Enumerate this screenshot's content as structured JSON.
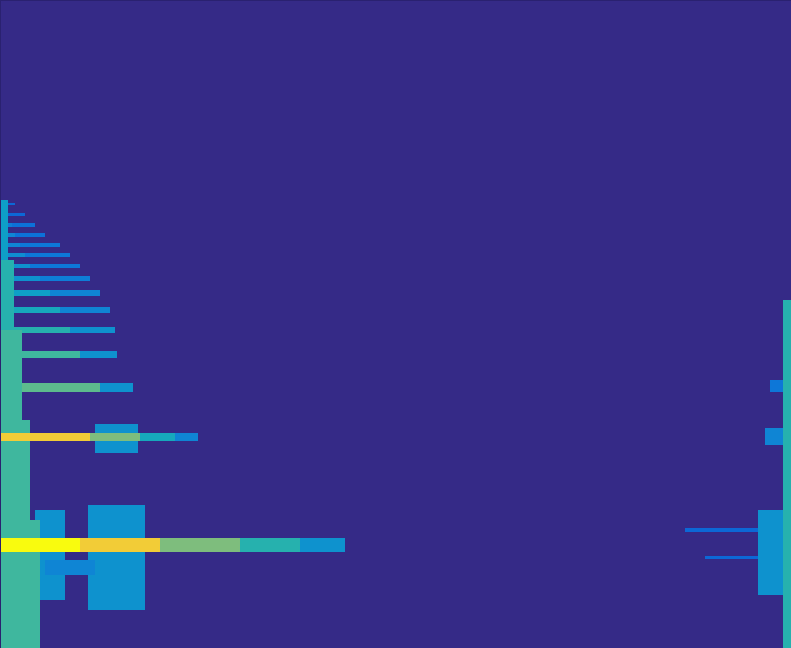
{
  "chart_data": {
    "type": "heatmap",
    "xlim": [
      0,
      791
    ],
    "ylim": [
      648,
      0
    ],
    "tick_labels": false,
    "clim": [
      0,
      1
    ],
    "cells": [
      {
        "x1": 0,
        "x2": 791,
        "y1": 0,
        "y2": 648,
        "value": 0
      },
      {
        "x1": 35,
        "x2": 65,
        "y1": 510,
        "y2": 600,
        "value": 0.3
      },
      {
        "x1": 88,
        "x2": 145,
        "y1": 505,
        "y2": 610,
        "value": 0.3
      },
      {
        "x1": 45,
        "x2": 95,
        "y1": 560,
        "y2": 575,
        "value": 0.25
      },
      {
        "x1": 95,
        "x2": 138,
        "y1": 424,
        "y2": 453,
        "value": 0.3
      },
      {
        "x1": 0,
        "x2": 100,
        "y1": 383,
        "y2": 392,
        "value": 0.55
      },
      {
        "x1": 100,
        "x2": 133,
        "y1": 383,
        "y2": 392,
        "value": 0.3
      },
      {
        "x1": 0,
        "x2": 80,
        "y1": 351,
        "y2": 358,
        "value": 0.5
      },
      {
        "x1": 80,
        "x2": 117,
        "y1": 351,
        "y2": 358,
        "value": 0.3
      },
      {
        "x1": 0,
        "x2": 70,
        "y1": 327,
        "y2": 333,
        "value": 0.45
      },
      {
        "x1": 70,
        "x2": 115,
        "y1": 327,
        "y2": 333,
        "value": 0.3
      },
      {
        "x1": 0,
        "x2": 60,
        "y1": 307,
        "y2": 313,
        "value": 0.4
      },
      {
        "x1": 60,
        "x2": 110,
        "y1": 307,
        "y2": 313,
        "value": 0.25
      },
      {
        "x1": 0,
        "x2": 50,
        "y1": 290,
        "y2": 296,
        "value": 0.35
      },
      {
        "x1": 50,
        "x2": 100,
        "y1": 290,
        "y2": 296,
        "value": 0.25
      },
      {
        "x1": 0,
        "x2": 40,
        "y1": 276,
        "y2": 281,
        "value": 0.3
      },
      {
        "x1": 40,
        "x2": 90,
        "y1": 276,
        "y2": 281,
        "value": 0.22
      },
      {
        "x1": 0,
        "x2": 30,
        "y1": 264,
        "y2": 268,
        "value": 0.3
      },
      {
        "x1": 30,
        "x2": 80,
        "y1": 264,
        "y2": 268,
        "value": 0.2
      },
      {
        "x1": 0,
        "x2": 25,
        "y1": 253,
        "y2": 257,
        "value": 0.28
      },
      {
        "x1": 25,
        "x2": 70,
        "y1": 253,
        "y2": 257,
        "value": 0.2
      },
      {
        "x1": 0,
        "x2": 20,
        "y1": 243,
        "y2": 247,
        "value": 0.25
      },
      {
        "x1": 20,
        "x2": 60,
        "y1": 243,
        "y2": 247,
        "value": 0.2
      },
      {
        "x1": 0,
        "x2": 15,
        "y1": 233,
        "y2": 237,
        "value": 0.25
      },
      {
        "x1": 15,
        "x2": 45,
        "y1": 233,
        "y2": 237,
        "value": 0.18
      },
      {
        "x1": 0,
        "x2": 12,
        "y1": 223,
        "y2": 227,
        "value": 0.22
      },
      {
        "x1": 12,
        "x2": 35,
        "y1": 223,
        "y2": 227,
        "value": 0.18
      },
      {
        "x1": 0,
        "x2": 8,
        "y1": 213,
        "y2": 216,
        "value": 0.22
      },
      {
        "x1": 8,
        "x2": 25,
        "y1": 213,
        "y2": 216,
        "value": 0.15
      },
      {
        "x1": 0,
        "x2": 5,
        "y1": 203,
        "y2": 205,
        "value": 0.2
      },
      {
        "x1": 5,
        "x2": 15,
        "y1": 203,
        "y2": 205,
        "value": 0.15
      },
      {
        "x1": 0,
        "x2": 8,
        "y1": 200,
        "y2": 260,
        "value": 0.35
      },
      {
        "x1": 0,
        "x2": 14,
        "y1": 260,
        "y2": 330,
        "value": 0.45
      },
      {
        "x1": 0,
        "x2": 22,
        "y1": 330,
        "y2": 420,
        "value": 0.5
      },
      {
        "x1": 0,
        "x2": 30,
        "y1": 420,
        "y2": 520,
        "value": 0.5
      },
      {
        "x1": 0,
        "x2": 40,
        "y1": 520,
        "y2": 648,
        "value": 0.5
      },
      {
        "x1": 0,
        "x2": 90,
        "y1": 433,
        "y2": 441,
        "value": 0.85
      },
      {
        "x1": 90,
        "x2": 140,
        "y1": 433,
        "y2": 441,
        "value": 0.6
      },
      {
        "x1": 140,
        "x2": 175,
        "y1": 433,
        "y2": 441,
        "value": 0.4
      },
      {
        "x1": 175,
        "x2": 198,
        "y1": 433,
        "y2": 441,
        "value": 0.25
      },
      {
        "x1": 0,
        "x2": 80,
        "y1": 538,
        "y2": 552,
        "value": 1.0
      },
      {
        "x1": 80,
        "x2": 160,
        "y1": 538,
        "y2": 552,
        "value": 0.85
      },
      {
        "x1": 160,
        "x2": 240,
        "y1": 538,
        "y2": 552,
        "value": 0.6
      },
      {
        "x1": 240,
        "x2": 300,
        "y1": 538,
        "y2": 552,
        "value": 0.45
      },
      {
        "x1": 300,
        "x2": 345,
        "y1": 538,
        "y2": 552,
        "value": 0.3
      },
      {
        "x1": 685,
        "x2": 760,
        "y1": 528,
        "y2": 532,
        "value": 0.15
      },
      {
        "x1": 705,
        "x2": 760,
        "y1": 556,
        "y2": 559,
        "value": 0.15
      },
      {
        "x1": 758,
        "x2": 791,
        "y1": 510,
        "y2": 595,
        "value": 0.3
      },
      {
        "x1": 765,
        "x2": 785,
        "y1": 428,
        "y2": 445,
        "value": 0.25
      },
      {
        "x1": 770,
        "x2": 791,
        "y1": 380,
        "y2": 392,
        "value": 0.2
      },
      {
        "x1": 783,
        "x2": 791,
        "y1": 300,
        "y2": 648,
        "value": 0.45
      }
    ]
  }
}
